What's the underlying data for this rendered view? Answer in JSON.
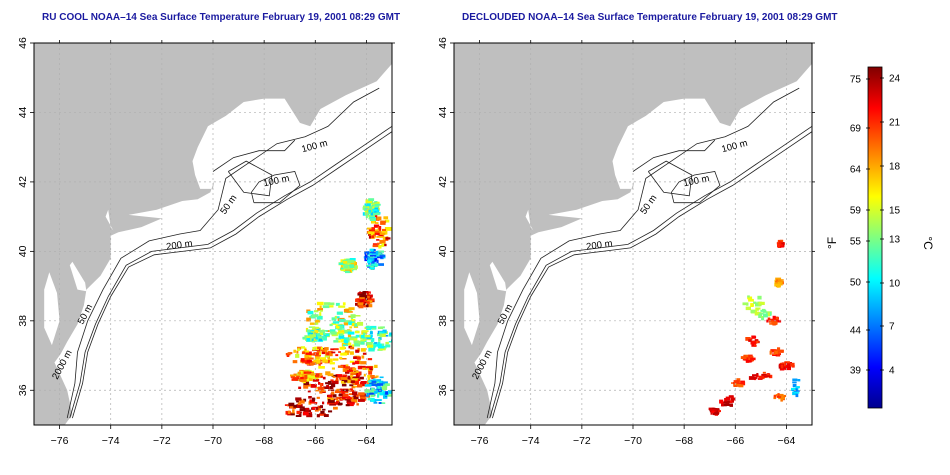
{
  "maps": [
    {
      "title": "RU COOL NOAA–14 Sea Surface Temperature February 19, 2001 08:29 GMT",
      "contour_labels": [
        "100 m",
        "100 m",
        "50 m",
        "200 m",
        "50 m",
        "2000 m"
      ]
    },
    {
      "title": "DECLOUDED NOAA–14 Sea Surface Temperature February 19, 2001 08:29 GMT",
      "contour_labels": [
        "100 m",
        "100 m",
        "50 m",
        "200 m",
        "50 m",
        "2000 m"
      ]
    }
  ],
  "axes": {
    "x_ticks": [
      "−76",
      "−74",
      "−72",
      "−70",
      "−68",
      "−66",
      "−64"
    ],
    "y_ticks": [
      "36",
      "38",
      "40",
      "42",
      "44",
      "46"
    ]
  },
  "colorbar": {
    "unit_f": "°F",
    "unit_c": "°C",
    "f_ticks": [
      "75",
      "69",
      "64",
      "59",
      "55",
      "50",
      "44",
      "39"
    ],
    "c_ticks": [
      "24",
      "21",
      "18",
      "15",
      "13",
      "10",
      "7",
      "4"
    ],
    "colors": [
      "#00008f",
      "#0000ff",
      "#0080ff",
      "#00ffff",
      "#80ff80",
      "#ffff00",
      "#ff8000",
      "#ff0000",
      "#800000"
    ]
  },
  "colors": {
    "land": "#bfbfbf",
    "title": "#1a1aa0",
    "grid": "#b0b0b0"
  }
}
